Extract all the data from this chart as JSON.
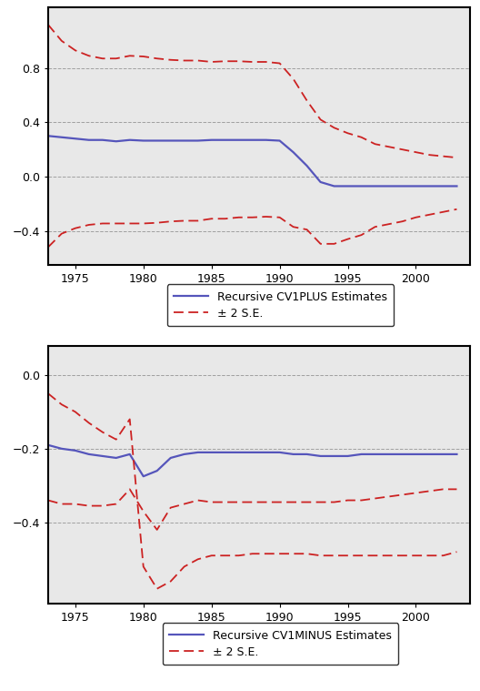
{
  "years": [
    1973,
    1974,
    1975,
    1976,
    1977,
    1978,
    1979,
    1980,
    1981,
    1982,
    1983,
    1984,
    1985,
    1986,
    1987,
    1988,
    1989,
    1990,
    1991,
    1992,
    1993,
    1994,
    1995,
    1996,
    1997,
    1998,
    1999,
    2000,
    2001,
    2002,
    2003
  ],
  "cv1plus_main": [
    0.3,
    0.29,
    0.28,
    0.27,
    0.27,
    0.26,
    0.27,
    0.265,
    0.265,
    0.265,
    0.265,
    0.265,
    0.27,
    0.27,
    0.27,
    0.27,
    0.27,
    0.265,
    0.18,
    0.08,
    -0.04,
    -0.07,
    -0.07,
    -0.07,
    -0.07,
    -0.07,
    -0.07,
    -0.07,
    -0.07,
    -0.07,
    -0.07
  ],
  "cv1plus_upper": [
    1.12,
    1.0,
    0.93,
    0.89,
    0.87,
    0.87,
    0.89,
    0.885,
    0.87,
    0.86,
    0.855,
    0.855,
    0.845,
    0.85,
    0.85,
    0.845,
    0.845,
    0.835,
    0.72,
    0.56,
    0.42,
    0.36,
    0.32,
    0.29,
    0.24,
    0.22,
    0.2,
    0.18,
    0.16,
    0.15,
    0.14
  ],
  "cv1plus_lower": [
    -0.52,
    -0.42,
    -0.38,
    -0.355,
    -0.345,
    -0.345,
    -0.345,
    -0.345,
    -0.34,
    -0.33,
    -0.325,
    -0.325,
    -0.31,
    -0.31,
    -0.3,
    -0.3,
    -0.295,
    -0.3,
    -0.37,
    -0.39,
    -0.495,
    -0.495,
    -0.46,
    -0.43,
    -0.37,
    -0.35,
    -0.33,
    -0.3,
    -0.28,
    -0.26,
    -0.24
  ],
  "cv1minus_main": [
    -0.19,
    -0.2,
    -0.205,
    -0.215,
    -0.22,
    -0.225,
    -0.215,
    -0.275,
    -0.26,
    -0.225,
    -0.215,
    -0.21,
    -0.21,
    -0.21,
    -0.21,
    -0.21,
    -0.21,
    -0.21,
    -0.215,
    -0.215,
    -0.22,
    -0.22,
    -0.22,
    -0.215,
    -0.215,
    -0.215,
    -0.215,
    -0.215,
    -0.215,
    -0.215,
    -0.215
  ],
  "cv1minus_upper": [
    -0.05,
    -0.08,
    -0.1,
    -0.13,
    -0.155,
    -0.175,
    -0.12,
    -0.52,
    -0.58,
    -0.56,
    -0.52,
    -0.5,
    -0.49,
    -0.49,
    -0.49,
    -0.485,
    -0.485,
    -0.485,
    -0.485,
    -0.485,
    -0.49,
    -0.49,
    -0.49,
    -0.49,
    -0.49,
    -0.49,
    -0.49,
    -0.49,
    -0.49,
    -0.49,
    -0.48
  ],
  "cv1minus_lower": [
    -0.34,
    -0.35,
    -0.35,
    -0.355,
    -0.355,
    -0.35,
    -0.31,
    -0.37,
    -0.42,
    -0.36,
    -0.35,
    -0.34,
    -0.345,
    -0.345,
    -0.345,
    -0.345,
    -0.345,
    -0.345,
    -0.345,
    -0.345,
    -0.345,
    -0.345,
    -0.34,
    -0.34,
    -0.335,
    -0.33,
    -0.325,
    -0.32,
    -0.315,
    -0.31,
    -0.31
  ],
  "panel1_ylim": [
    -0.65,
    1.25
  ],
  "panel1_yticks": [
    -0.4,
    0.0,
    0.4,
    0.8
  ],
  "panel2_ylim": [
    -0.62,
    0.08
  ],
  "panel2_yticks": [
    -0.4,
    -0.2,
    0.0
  ],
  "xlim": [
    1973,
    2004
  ],
  "xticks": [
    1975,
    1980,
    1985,
    1990,
    1995,
    2000
  ],
  "blue_color": "#5555bb",
  "red_color": "#cc2222",
  "grid_color": "#999999",
  "bg_color": "#e8e8e8",
  "legend1_label": "Recursive CV1PLUS Estimates",
  "legend2_label": "Recursive CV1MINUS Estimates",
  "legend_se_label": "± 2 S.E."
}
